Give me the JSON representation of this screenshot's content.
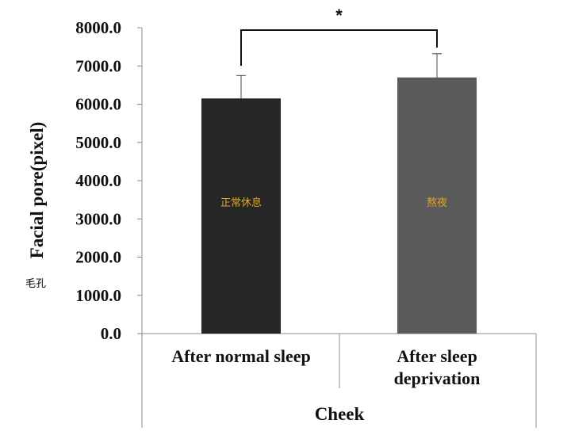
{
  "chart_data": {
    "type": "bar",
    "ylabel": "Facial pore(pixel)",
    "ylabel_note": "毛孔",
    "group_label": "Cheek",
    "categories": [
      "After normal sleep",
      "After sleep\ndeprivation"
    ],
    "values": [
      6150,
      6700
    ],
    "errors": [
      600,
      620
    ],
    "bar_annotations": [
      "正常休息",
      "熬夜"
    ],
    "significance": "*",
    "ylim": [
      0,
      8000
    ],
    "yticks": [
      "0.0",
      "1000.0",
      "2000.0",
      "3000.0",
      "4000.0",
      "5000.0",
      "6000.0",
      "7000.0",
      "8000.0"
    ],
    "grid": false,
    "legend": "none"
  },
  "colors": {
    "bar_1": "#262626",
    "bar_2": "#5a5a5a",
    "annotation_text": "#e0a81c",
    "note_text": "#b5544a",
    "axis": "#8c8c8c"
  }
}
